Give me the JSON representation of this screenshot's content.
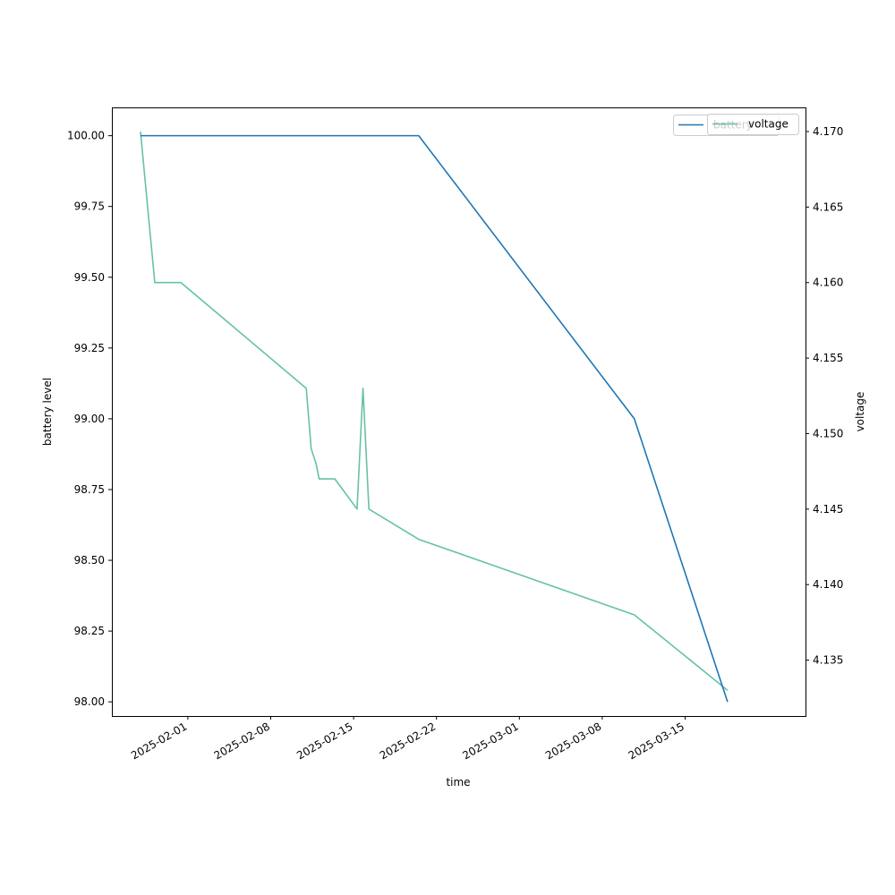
{
  "chart_data": {
    "type": "line",
    "xlabel": "time",
    "ylabel_left": "battery level",
    "ylabel_right": "voltage",
    "x_ticks": [
      "2025-02-01",
      "2025-02-08",
      "2025-02-15",
      "2025-02-22",
      "2025-03-01",
      "2025-03-08",
      "2025-03-15"
    ],
    "y_left_ticks": [
      "98.00",
      "98.25",
      "98.50",
      "98.75",
      "99.00",
      "99.25",
      "99.50",
      "99.75",
      "100.00"
    ],
    "y_right_ticks": [
      "4.135",
      "4.140",
      "4.145",
      "4.150",
      "4.155",
      "4.160",
      "4.165",
      "4.170"
    ],
    "ylim_left": [
      97.95,
      100.1
    ],
    "ylim_right": [
      4.1313,
      4.1716
    ],
    "xlim": [
      "2025-01-25T14:00",
      "2025-03-25T04:00"
    ],
    "grid": false,
    "legend_placement": "top-right",
    "colors": {
      "battery": "#1f77b4",
      "voltage": "#66c2a5"
    },
    "series": [
      {
        "name": "battery",
        "axis": "left",
        "x": [
          "2025-01-28T00:00",
          "2025-02-20T12:00",
          "2025-03-10T17:00",
          "2025-03-18T14:00"
        ],
        "values": [
          100.0,
          100.0,
          99.0,
          98.0
        ]
      },
      {
        "name": "voltage",
        "axis": "right",
        "x": [
          "2025-01-28T00:00",
          "2025-01-29T05:00",
          "2025-01-31T10:00",
          "2025-02-11T00:00",
          "2025-02-11T10:00",
          "2025-02-11T20:00",
          "2025-02-12T02:00",
          "2025-02-13T10:00",
          "2025-02-15T07:00",
          "2025-02-15T19:00",
          "2025-02-16T07:00",
          "2025-02-20T12:00",
          "2025-03-10T17:00",
          "2025-03-18T14:00"
        ],
        "values": [
          4.17,
          4.16,
          4.16,
          4.153,
          4.149,
          4.148,
          4.147,
          4.147,
          4.145,
          4.153,
          4.145,
          4.143,
          4.138,
          4.133
        ]
      }
    ]
  }
}
